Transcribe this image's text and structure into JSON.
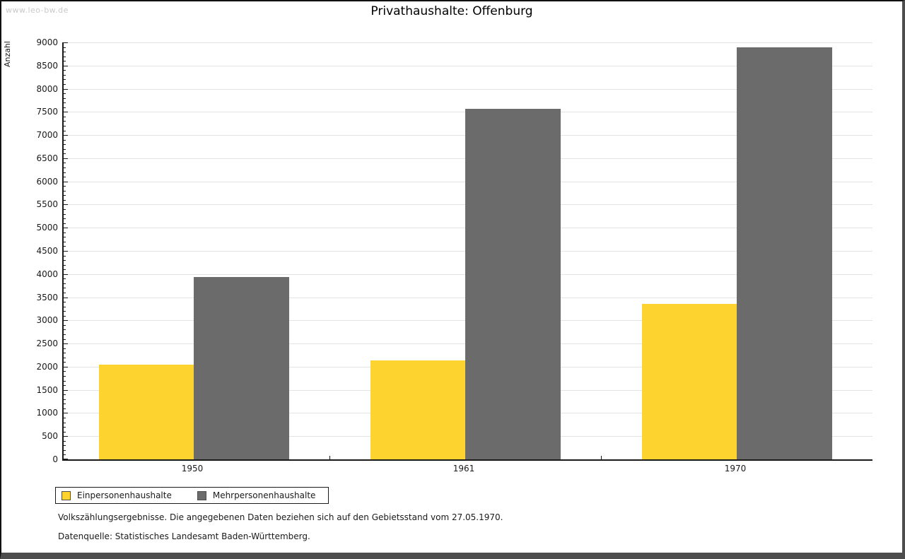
{
  "watermark": "www.leo-bw.de",
  "title": "Privathaushalte: Offenburg",
  "chart_data": {
    "type": "bar",
    "categories": [
      "1950",
      "1961",
      "1970"
    ],
    "series": [
      {
        "name": "Einpersonenhaushalte",
        "color": "#FDD32F",
        "values": [
          2050,
          2140,
          3360
        ]
      },
      {
        "name": "Mehrpersonenhaushalte",
        "color": "#6B6B6B",
        "values": [
          3930,
          7560,
          8890
        ]
      }
    ],
    "title": "Privathaushalte: Offenburg",
    "xlabel": "",
    "ylabel": "Anzahl",
    "ylim": [
      0,
      9000
    ],
    "ytick_major": 500,
    "ytick_minor": 100,
    "grid": true,
    "legend_position": "bottom-left"
  },
  "legend": {
    "items": [
      {
        "label": "Einpersonenhaushalte",
        "color": "#FDD32F"
      },
      {
        "label": "Mehrpersonenhaushalte",
        "color": "#6B6B6B"
      }
    ]
  },
  "footnotes": [
    "Volkszählungsergebnisse. Die angegebenen Daten beziehen sich auf den Gebietsstand vom 27.05.1970.",
    "Datenquelle: Statistisches Landesamt Baden-Württemberg."
  ],
  "colors": {
    "grid": "#E3E3E3",
    "axis": "#1A1A1A",
    "watermark": "#C9C9C9"
  }
}
